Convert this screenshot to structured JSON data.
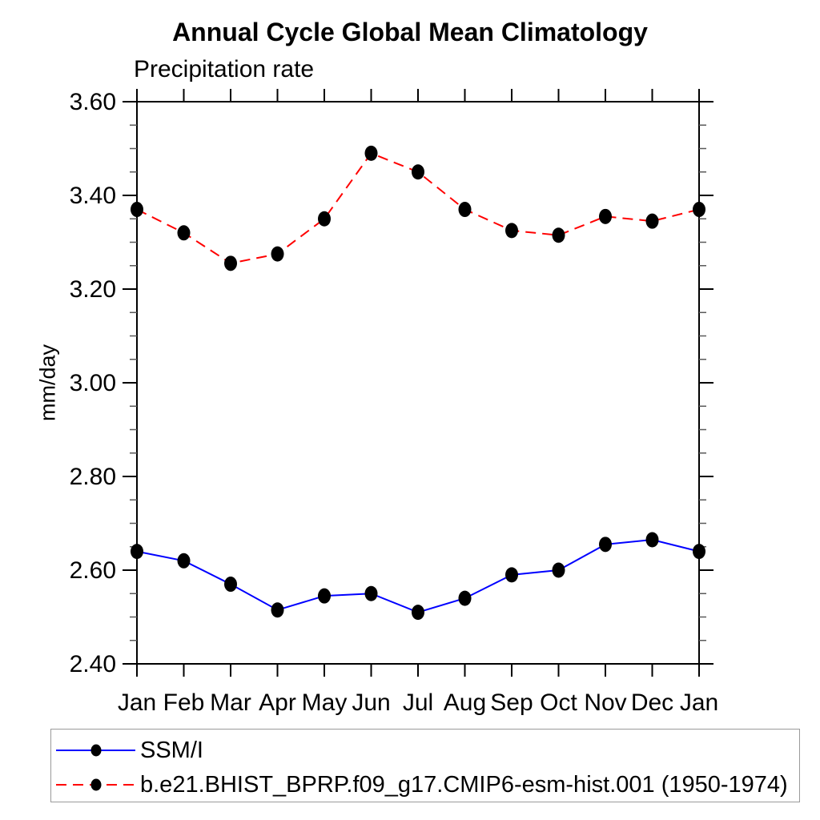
{
  "chart_data": {
    "type": "line",
    "title": "Annual Cycle Global Mean Climatology",
    "subtitle": "Precipitation rate",
    "ylabel": "mm/day",
    "xlabel": "",
    "categories": [
      "Jan",
      "Feb",
      "Mar",
      "Apr",
      "May",
      "Jun",
      "Jul",
      "Aug",
      "Sep",
      "Oct",
      "Nov",
      "Dec",
      "Jan"
    ],
    "ylim": [
      2.4,
      3.6
    ],
    "ytick_values": [
      2.4,
      2.6,
      2.8,
      3.0,
      3.2,
      3.4,
      3.6
    ],
    "ytick_labels": [
      "2.40",
      "2.60",
      "2.80",
      "3.00",
      "3.20",
      "3.40",
      "3.60"
    ],
    "minor_tick_step": 0.05,
    "grid": false,
    "legend_position": "bottom-left-box",
    "marker": "filled-black-dot",
    "series": [
      {
        "name": "SSM/I",
        "color": "#0000ff",
        "line_style": "solid",
        "values": [
          2.64,
          2.62,
          2.57,
          2.515,
          2.545,
          2.55,
          2.51,
          2.54,
          2.59,
          2.6,
          2.655,
          2.665,
          2.64
        ]
      },
      {
        "name": "b.e21.BHIST_BPRP.f09_g17.CMIP6-esm-hist.001 (1950-1974)",
        "color": "#ff0000",
        "line_style": "dashed",
        "values": [
          3.37,
          3.32,
          3.255,
          3.275,
          3.35,
          3.49,
          3.45,
          3.37,
          3.325,
          3.315,
          3.355,
          3.345,
          3.37
        ]
      }
    ]
  }
}
